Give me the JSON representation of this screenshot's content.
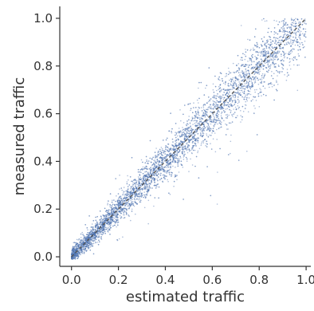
{
  "chart_data": {
    "type": "scatter",
    "title": "",
    "xlabel": "estimated traffic",
    "ylabel": "measured traffic",
    "xlim": [
      -0.05,
      1.02
    ],
    "ylim": [
      -0.04,
      1.05
    ],
    "x_ticks": [
      0.0,
      0.2,
      0.4,
      0.6,
      0.8,
      1.0
    ],
    "x_tick_labels": [
      "0.0",
      "0.2",
      "0.4",
      "0.6",
      "0.8",
      "1.0"
    ],
    "y_ticks": [
      0.0,
      0.2,
      0.4,
      0.6,
      0.8,
      1.0
    ],
    "y_tick_labels": [
      "0.0",
      "0.2",
      "0.4",
      "0.6",
      "0.8",
      "1.0"
    ],
    "grid": false,
    "spines": "left-bottom",
    "reference_line": {
      "from": [
        0.0,
        0.0
      ],
      "to": [
        1.0,
        1.0
      ],
      "style": "dashed",
      "color": "#555555"
    },
    "point_color": "#4c72b0",
    "point_count_approx": 6000,
    "points_summary": "dense cloud of traffic samples concentrated along the diagonal; spread grows with value, roughly from (0,0) to (1,1)"
  }
}
